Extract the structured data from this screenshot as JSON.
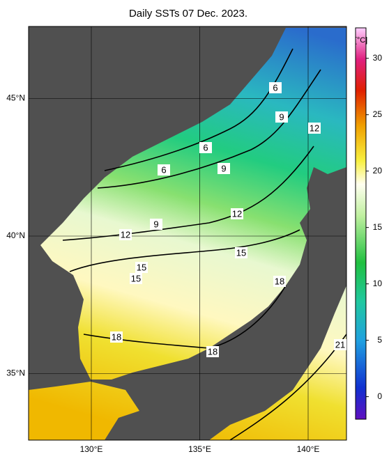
{
  "title": "Daily SSTs 07 Dec. 2023.",
  "unit": "[°C]",
  "lat_ticks": [
    {
      "value": 45,
      "label": "45°N"
    },
    {
      "value": 40,
      "label": "40°N"
    },
    {
      "value": 35,
      "label": "35°N"
    }
  ],
  "lon_ticks": [
    {
      "value": 130,
      "label": "130°E"
    },
    {
      "value": 135,
      "label": "135°E"
    },
    {
      "value": 140,
      "label": "140°E"
    }
  ],
  "colorbar": {
    "range": [
      -2,
      32.7
    ],
    "ticks": [
      30,
      25,
      20,
      15,
      10,
      5,
      0
    ]
  },
  "contour_labels": [
    "6",
    "9",
    "12",
    "6",
    "9",
    "6",
    "12",
    "9",
    "12",
    "15",
    "15",
    "15",
    "18",
    "18",
    "18",
    "21"
  ]
}
